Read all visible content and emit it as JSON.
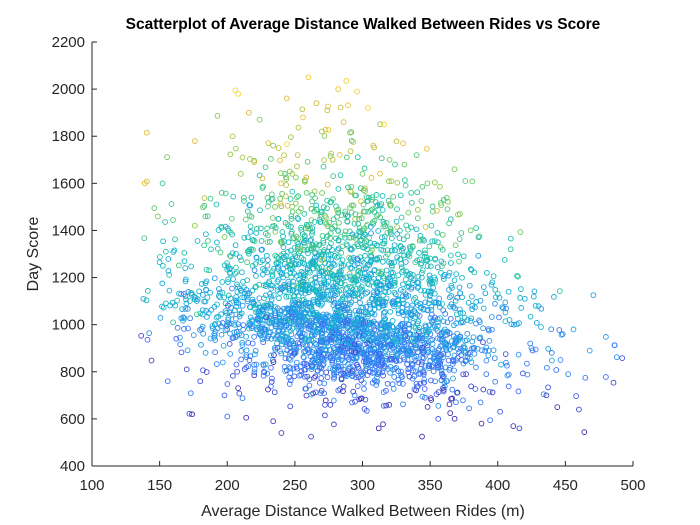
{
  "chart_data": {
    "type": "scatter",
    "title": "Scatterplot of Average Distance Walked Between Rides vs Score",
    "xlabel": "Average Distance Walked Between Rides (m)",
    "ylabel": "Day Score",
    "xlim": [
      100,
      500
    ],
    "ylim": [
      400,
      2200
    ],
    "xticks": [
      100,
      150,
      200,
      250,
      300,
      350,
      400,
      450,
      500
    ],
    "xtick_labels": [
      "100",
      "150",
      "200",
      "250",
      "300",
      "350",
      "400",
      "450",
      "500"
    ],
    "yticks": [
      400,
      600,
      800,
      1000,
      1200,
      1400,
      1600,
      1800,
      2000,
      2200
    ],
    "ytick_labels": [
      "400",
      "600",
      "800",
      "1000",
      "1200",
      "1400",
      "1600",
      "1800",
      "2000",
      "2200"
    ],
    "grid": false,
    "legend": "none",
    "marker": "open-circle",
    "colormap": [
      "#3e26a8",
      "#4367fd",
      "#2797eb",
      "#0fb4d0",
      "#27c59a",
      "#86c94e",
      "#e0b93a",
      "#f9d52c"
    ],
    "colormap_range": [
      500,
      2100
    ],
    "points": [
      {
        "x": 139,
        "y": 1600
      },
      {
        "x": 138,
        "y": 1110
      },
      {
        "x": 144,
        "y": 848
      },
      {
        "x": 150,
        "y": 1265
      },
      {
        "x": 152,
        "y": 1175
      },
      {
        "x": 156,
        "y": 760
      },
      {
        "x": 160,
        "y": 1010
      },
      {
        "x": 165,
        "y": 945
      },
      {
        "x": 168,
        "y": 1130
      },
      {
        "x": 170,
        "y": 810
      },
      {
        "x": 172,
        "y": 622
      },
      {
        "x": 174,
        "y": 620
      },
      {
        "x": 176,
        "y": 1420
      },
      {
        "x": 178,
        "y": 1355
      },
      {
        "x": 180,
        "y": 760
      },
      {
        "x": 184,
        "y": 880
      },
      {
        "x": 188,
        "y": 1320
      },
      {
        "x": 192,
        "y": 1510
      },
      {
        "x": 196,
        "y": 1560
      },
      {
        "x": 198,
        "y": 700
      },
      {
        "x": 200,
        "y": 610
      },
      {
        "x": 204,
        "y": 1800
      },
      {
        "x": 206,
        "y": 1995
      },
      {
        "x": 208,
        "y": 1980
      },
      {
        "x": 210,
        "y": 1640
      },
      {
        "x": 214,
        "y": 605
      },
      {
        "x": 216,
        "y": 1900
      },
      {
        "x": 220,
        "y": 1690
      },
      {
        "x": 224,
        "y": 1870
      },
      {
        "x": 226,
        "y": 1580
      },
      {
        "x": 230,
        "y": 1380
      },
      {
        "x": 234,
        "y": 590
      },
      {
        "x": 238,
        "y": 1750
      },
      {
        "x": 240,
        "y": 540
      },
      {
        "x": 244,
        "y": 1960
      },
      {
        "x": 248,
        "y": 1640
      },
      {
        "x": 252,
        "y": 1720
      },
      {
        "x": 256,
        "y": 1880
      },
      {
        "x": 260,
        "y": 2050
      },
      {
        "x": 262,
        "y": 525
      },
      {
        "x": 266,
        "y": 1940
      },
      {
        "x": 270,
        "y": 1820
      },
      {
        "x": 274,
        "y": 1910
      },
      {
        "x": 278,
        "y": 1700
      },
      {
        "x": 282,
        "y": 2000
      },
      {
        "x": 286,
        "y": 1860
      },
      {
        "x": 288,
        "y": 2035
      },
      {
        "x": 292,
        "y": 1780
      },
      {
        "x": 296,
        "y": 1990
      },
      {
        "x": 300,
        "y": 1640
      },
      {
        "x": 304,
        "y": 1920
      },
      {
        "x": 308,
        "y": 1760
      },
      {
        "x": 312,
        "y": 560
      },
      {
        "x": 316,
        "y": 1850
      },
      {
        "x": 320,
        "y": 1700
      },
      {
        "x": 324,
        "y": 1680
      },
      {
        "x": 330,
        "y": 1770
      },
      {
        "x": 336,
        "y": 1560
      },
      {
        "x": 340,
        "y": 1720
      },
      {
        "x": 344,
        "y": 525
      },
      {
        "x": 348,
        "y": 1600
      },
      {
        "x": 352,
        "y": 1480
      },
      {
        "x": 356,
        "y": 600
      },
      {
        "x": 360,
        "y": 1530
      },
      {
        "x": 364,
        "y": 1430
      },
      {
        "x": 368,
        "y": 1660
      },
      {
        "x": 372,
        "y": 1470
      },
      {
        "x": 376,
        "y": 1610
      },
      {
        "x": 380,
        "y": 1400
      },
      {
        "x": 384,
        "y": 1410
      },
      {
        "x": 388,
        "y": 580
      },
      {
        "x": 392,
        "y": 1220
      },
      {
        "x": 396,
        "y": 1180
      },
      {
        "x": 400,
        "y": 1130
      },
      {
        "x": 404,
        "y": 1070
      },
      {
        "x": 408,
        "y": 1140
      },
      {
        "x": 412,
        "y": 1000
      },
      {
        "x": 416,
        "y": 560
      },
      {
        "x": 420,
        "y": 1110
      },
      {
        "x": 424,
        "y": 920
      },
      {
        "x": 428,
        "y": 1080
      },
      {
        "x": 432,
        "y": 990
      },
      {
        "x": 436,
        "y": 700
      },
      {
        "x": 440,
        "y": 880
      },
      {
        "x": 444,
        "y": 650
      },
      {
        "x": 448,
        "y": 960
      },
      {
        "x": 452,
        "y": 790
      },
      {
        "x": 456,
        "y": 980
      },
      {
        "x": 460,
        "y": 640
      },
      {
        "x": 464,
        "y": 544
      },
      {
        "x": 468,
        "y": 890
      },
      {
        "x": 480,
        "y": 948
      },
      {
        "x": 480,
        "y": 778
      },
      {
        "x": 488,
        "y": 862
      },
      {
        "x": 492,
        "y": 858
      }
    ],
    "cluster_model": {
      "n_points": 3000,
      "x_mean": 285,
      "x_sd": 55,
      "x_min": 135,
      "x_max": 495,
      "y_mean_at_x_mean": 1040,
      "y_slope_per_m": -0.9,
      "y_sd_low": 150,
      "y_sd_high": 290,
      "y_min": 520,
      "y_max": 2060
    }
  }
}
